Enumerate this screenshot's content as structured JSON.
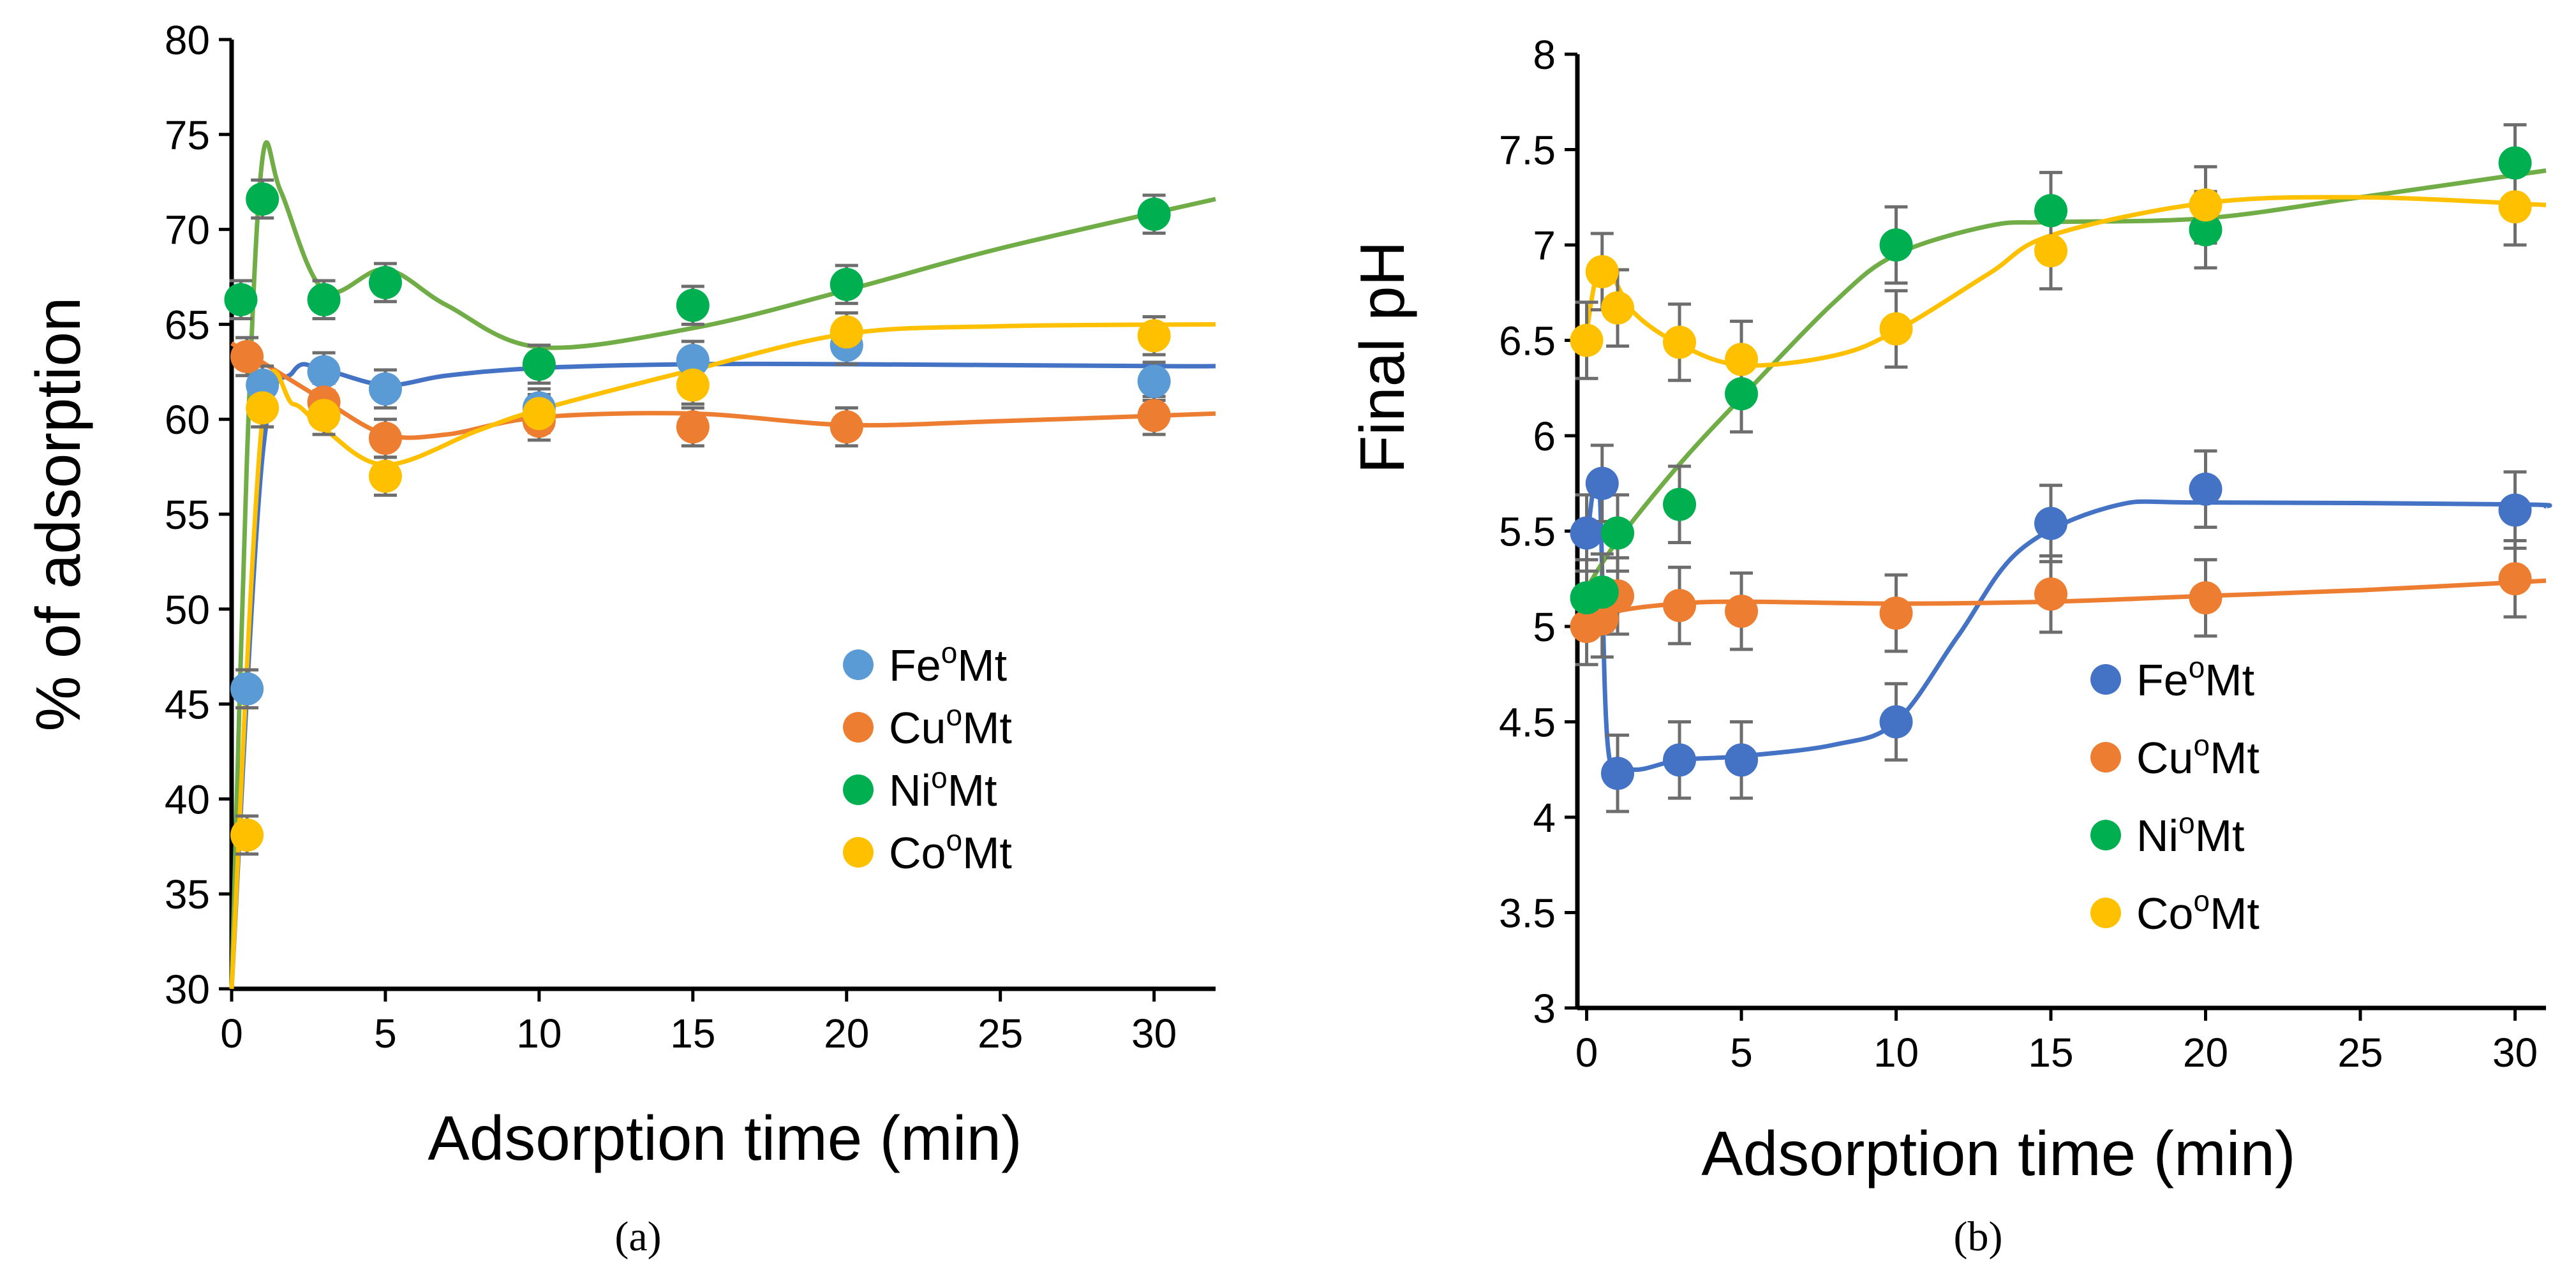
{
  "chart_data": [
    {
      "id": "a",
      "type": "scatter",
      "panel_label": "(a)",
      "xlabel": "Adsorption time (min)",
      "ylabel": "% of adsorption",
      "xlim": [
        0,
        32
      ],
      "ylim": [
        30,
        80
      ],
      "xticks": [
        "0",
        "5",
        "10",
        "15",
        "20",
        "25",
        "30"
      ],
      "yticks": [
        "30",
        "35",
        "40",
        "45",
        "50",
        "55",
        "60",
        "65",
        "70",
        "75",
        "80"
      ],
      "legend_position": "center-right",
      "error_bar": 1.0,
      "series": [
        {
          "name": "Fe",
          "sup": "o",
          "suffix": "Mt",
          "color": "#5b9bd5",
          "curve_color": "#4472c4",
          "x": [
            0.5,
            1,
            3,
            5,
            10,
            15,
            20,
            30
          ],
          "y": [
            45.8,
            61.8,
            62.5,
            61.6,
            60.6,
            63.1,
            63.9,
            62.0
          ],
          "curve": [
            [
              0,
              30
            ],
            [
              1,
              58
            ],
            [
              2,
              62.5
            ],
            [
              3,
              62.6
            ],
            [
              5,
              61.8
            ],
            [
              7,
              62.3
            ],
            [
              10,
              62.7
            ],
            [
              15,
              62.9
            ],
            [
              20,
              62.9
            ],
            [
              30,
              62.8
            ],
            [
              32,
              62.8
            ]
          ]
        },
        {
          "name": "Cu",
          "sup": "o",
          "suffix": "Mt",
          "color": "#ed7d31",
          "curve_color": "#ed7d31",
          "x": [
            0.5,
            3,
            5,
            10,
            15,
            20,
            30
          ],
          "y": [
            63.3,
            60.9,
            59.0,
            59.9,
            59.6,
            59.6,
            60.2
          ],
          "curve": [
            [
              0,
              64
            ],
            [
              1,
              63
            ],
            [
              3,
              61
            ],
            [
              5,
              59.2
            ],
            [
              7,
              59.2
            ],
            [
              10,
              60.1
            ],
            [
              15,
              60.3
            ],
            [
              20,
              59.7
            ],
            [
              25,
              59.9
            ],
            [
              32,
              60.3
            ]
          ]
        },
        {
          "name": "Ni",
          "sup": "o",
          "suffix": "Mt",
          "color": "#00b050",
          "curve_color": "#70ad47",
          "x": [
            0.3,
            1,
            3,
            5,
            10,
            15,
            20,
            30
          ],
          "y": [
            66.3,
            71.6,
            66.3,
            67.2,
            62.9,
            66.0,
            67.1,
            70.8
          ],
          "curve": [
            [
              0,
              30
            ],
            [
              0.5,
              58
            ],
            [
              1,
              73.7
            ],
            [
              1.6,
              72
            ],
            [
              3,
              66.8
            ],
            [
              5,
              67.9
            ],
            [
              7,
              66
            ],
            [
              10,
              63.8
            ],
            [
              15,
              64.8
            ],
            [
              20,
              66.8
            ],
            [
              25,
              69
            ],
            [
              32,
              71.6
            ]
          ]
        },
        {
          "name": "Co",
          "sup": "o",
          "suffix": "Mt",
          "color": "#ffc000",
          "curve_color": "#ffc000",
          "x": [
            0.5,
            1,
            3,
            5,
            10,
            15,
            20,
            30
          ],
          "y": [
            38.1,
            60.6,
            60.2,
            57.0,
            60.3,
            61.8,
            64.6,
            64.4
          ],
          "curve": [
            [
              0,
              30
            ],
            [
              1,
              60
            ],
            [
              2,
              60.8
            ],
            [
              3,
              59.5
            ],
            [
              5,
              57.6
            ],
            [
              8,
              59.4
            ],
            [
              10,
              60.5
            ],
            [
              15,
              62.6
            ],
            [
              20,
              64.5
            ],
            [
              25,
              64.9
            ],
            [
              32,
              65
            ]
          ]
        }
      ]
    },
    {
      "id": "b",
      "type": "scatter",
      "panel_label": "(b)",
      "xlabel": "Adsorption time (min)",
      "ylabel": "Final pH",
      "xlim": [
        -0.3,
        31
      ],
      "ylim": [
        3,
        8
      ],
      "xticks": [
        "0",
        "5",
        "10",
        "15",
        "20",
        "25",
        "30"
      ],
      "yticks": [
        "3",
        "3.5",
        "4",
        "4.5",
        "5",
        "5.5",
        "6",
        "6.5",
        "7",
        "7.5",
        "8"
      ],
      "legend_position": "center-right",
      "error_bar": 0.2,
      "series": [
        {
          "name": "Fe",
          "sup": "o",
          "suffix": "Mt",
          "color": "#4472c4",
          "curve_color": "#4472c4",
          "x": [
            0,
            0.5,
            1,
            3,
            5,
            10,
            15,
            20,
            30
          ],
          "y": [
            5.49,
            5.75,
            4.23,
            4.3,
            4.3,
            4.5,
            5.54,
            5.72,
            5.61
          ],
          "curve": [
            [
              0,
              5.45
            ],
            [
              0.4,
              5.75
            ],
            [
              0.7,
              4.35
            ],
            [
              1.5,
              4.25
            ],
            [
              3,
              4.3
            ],
            [
              5,
              4.32
            ],
            [
              8,
              4.38
            ],
            [
              10,
              4.5
            ],
            [
              12,
              4.95
            ],
            [
              14,
              5.4
            ],
            [
              17,
              5.63
            ],
            [
              20,
              5.65
            ],
            [
              30,
              5.64
            ],
            [
              31,
              5.63
            ]
          ]
        },
        {
          "name": "Cu",
          "sup": "o",
          "suffix": "Mt",
          "color": "#ed7d31",
          "curve_color": "#ed7d31",
          "x": [
            0,
            0.5,
            1,
            3,
            5,
            10,
            15,
            20,
            30
          ],
          "y": [
            5.0,
            5.04,
            5.16,
            5.11,
            5.08,
            5.07,
            5.17,
            5.15,
            5.25
          ],
          "curve": [
            [
              0,
              5.0
            ],
            [
              1,
              5.08
            ],
            [
              3,
              5.12
            ],
            [
              5,
              5.13
            ],
            [
              10,
              5.12
            ],
            [
              15,
              5.13
            ],
            [
              20,
              5.16
            ],
            [
              25,
              5.19
            ],
            [
              31,
              5.24
            ]
          ]
        },
        {
          "name": "Ni",
          "sup": "o",
          "suffix": "Mt",
          "color": "#00b050",
          "curve_color": "#70ad47",
          "x": [
            0,
            0.5,
            1,
            3,
            5,
            10,
            15,
            20,
            30
          ],
          "y": [
            5.15,
            5.18,
            5.49,
            5.64,
            6.22,
            7.0,
            7.18,
            7.08,
            7.43
          ],
          "curve": [
            [
              0,
              5.2
            ],
            [
              1,
              5.45
            ],
            [
              3,
              5.85
            ],
            [
              5,
              6.2
            ],
            [
              8,
              6.7
            ],
            [
              10,
              6.95
            ],
            [
              13,
              7.1
            ],
            [
              15,
              7.12
            ],
            [
              20,
              7.14
            ],
            [
              25,
              7.25
            ],
            [
              31,
              7.39
            ]
          ]
        },
        {
          "name": "Co",
          "sup": "o",
          "suffix": "Mt",
          "color": "#ffc000",
          "curve_color": "#ffc000",
          "x": [
            0,
            0.5,
            1,
            3,
            5,
            10,
            15,
            20,
            30
          ],
          "y": [
            6.5,
            6.86,
            6.67,
            6.49,
            6.4,
            6.56,
            6.97,
            7.21,
            7.2
          ],
          "curve": [
            [
              0,
              6.55
            ],
            [
              0.5,
              6.9
            ],
            [
              1.5,
              6.65
            ],
            [
              3,
              6.48
            ],
            [
              5,
              6.37
            ],
            [
              8,
              6.42
            ],
            [
              10,
              6.55
            ],
            [
              13,
              6.85
            ],
            [
              15,
              7.05
            ],
            [
              20,
              7.22
            ],
            [
              25,
              7.25
            ],
            [
              31,
              7.21
            ]
          ]
        }
      ]
    }
  ]
}
